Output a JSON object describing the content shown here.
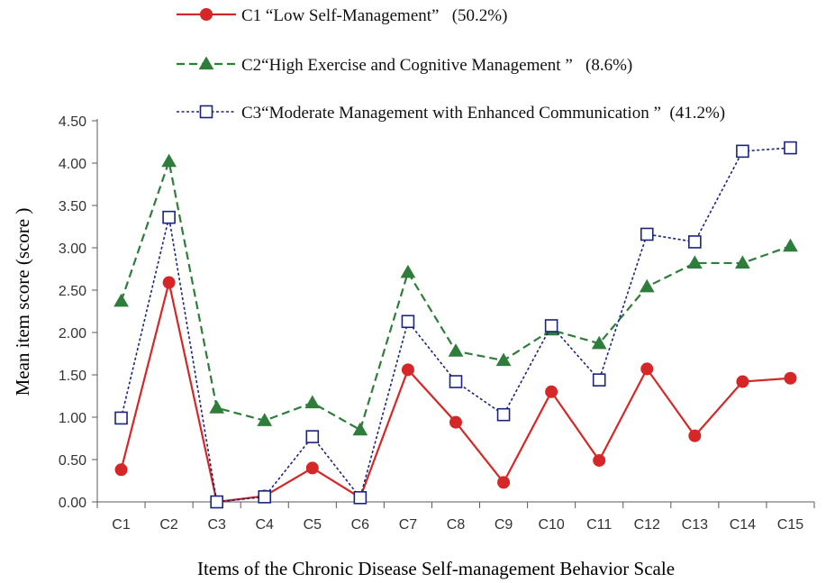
{
  "chart_data": {
    "type": "line",
    "title": "",
    "xlabel": "Items of the Chronic Disease Self-management Behavior Scale",
    "ylabel": "Mean item score (score )",
    "ylim": [
      0,
      4.5
    ],
    "yticks": [
      "0.00",
      "0.50",
      "1.00",
      "1.50",
      "2.00",
      "2.50",
      "3.00",
      "3.50",
      "4.00",
      "4.50"
    ],
    "grid": false,
    "legend_position": "top",
    "categories": [
      "C1",
      "C2",
      "C3",
      "C4",
      "C5",
      "C6",
      "C7",
      "C8",
      "C9",
      "C10",
      "C11",
      "C12",
      "C13",
      "C14",
      "C15"
    ],
    "series": [
      {
        "name": "C1 “Low Self-Management”   (50.2%)",
        "color": "#d62728",
        "line_style": "solid",
        "marker": "circle",
        "values": [
          0.38,
          2.59,
          0.0,
          0.07,
          0.4,
          0.05,
          1.56,
          0.94,
          0.23,
          1.3,
          0.49,
          1.57,
          0.78,
          1.42,
          1.46
        ]
      },
      {
        "name": "C2“High Exercise and Cognitive Management ”   (8.6%)",
        "color": "#2e7d3a",
        "line_style": "dashed",
        "marker": "triangle",
        "values": [
          2.37,
          4.02,
          1.11,
          0.96,
          1.17,
          0.85,
          2.71,
          1.78,
          1.67,
          2.03,
          1.87,
          2.54,
          2.82,
          2.82,
          3.02
        ]
      },
      {
        "name": "C3“Moderate Management with Enhanced Communication ”  (41.2%)",
        "color": "#1a237e",
        "line_style": "dotted",
        "marker": "square-open",
        "values": [
          0.99,
          3.36,
          0.0,
          0.06,
          0.77,
          0.05,
          2.13,
          1.42,
          1.03,
          2.08,
          1.44,
          3.16,
          3.07,
          4.14,
          4.18
        ]
      }
    ]
  }
}
